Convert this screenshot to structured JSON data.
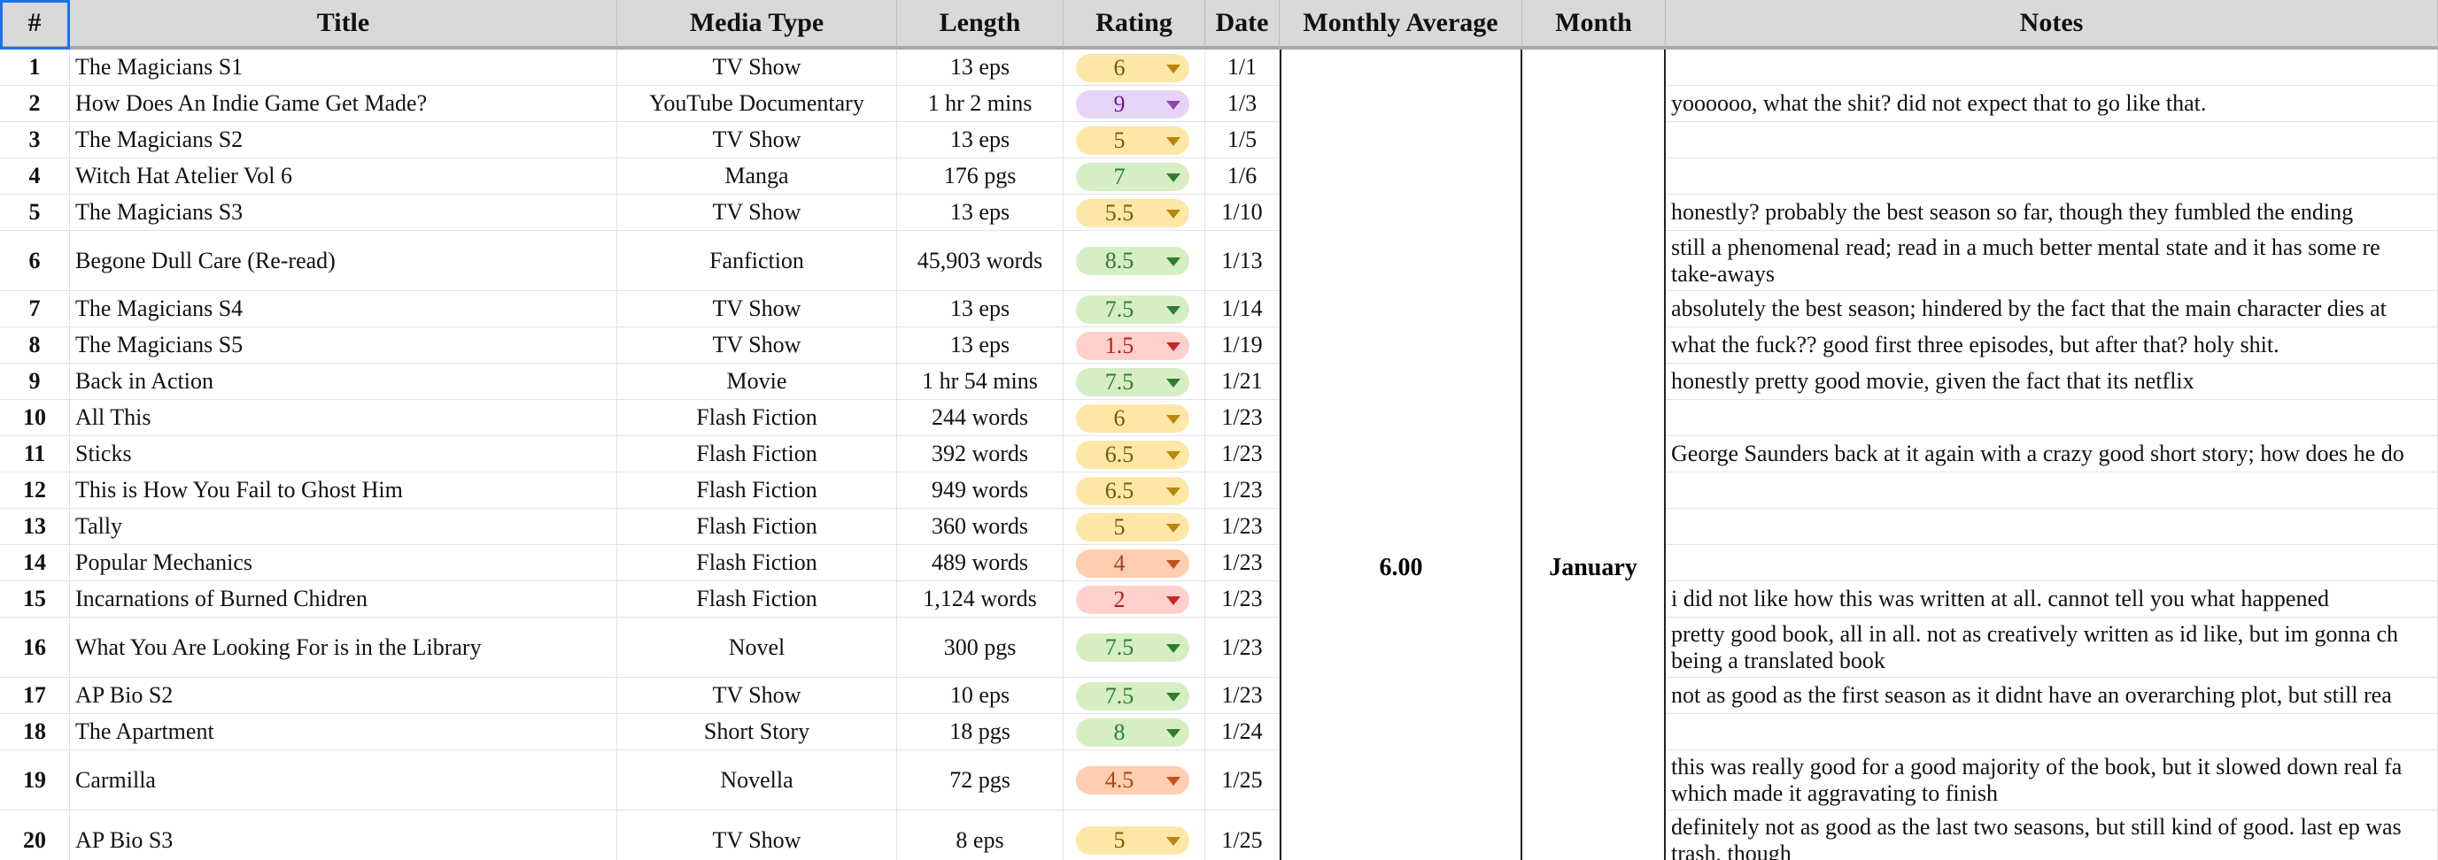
{
  "header": [
    "#",
    "Title",
    "Media Type",
    "Length",
    "Rating",
    "Date",
    "Monthly Average",
    "Month",
    "Notes"
  ],
  "monthly_average": "6.00",
  "month": "January",
  "rows": [
    {
      "num": 1,
      "title": "The Magicians S1",
      "media": "TV Show",
      "length": "13 eps",
      "rating": 6,
      "rating_color": "yellow",
      "date": "1/1",
      "notes": ""
    },
    {
      "num": 2,
      "title": "How Does An Indie Game Get Made?",
      "media": "YouTube Documentary",
      "length": "1 hr 2 mins",
      "rating": 9,
      "rating_color": "purple",
      "date": "1/3",
      "notes": "yoooooo, what the shit? did not expect that to go like that."
    },
    {
      "num": 3,
      "title": "The Magicians S2",
      "media": "TV Show",
      "length": "13 eps",
      "rating": 5,
      "rating_color": "yellow",
      "date": "1/5",
      "notes": ""
    },
    {
      "num": 4,
      "title": "Witch Hat Atelier Vol 6",
      "media": "Manga",
      "length": "176 pgs",
      "rating": 7,
      "rating_color": "green",
      "date": "1/6",
      "notes": ""
    },
    {
      "num": 5,
      "title": "The Magicians S3",
      "media": "TV Show",
      "length": "13 eps",
      "rating": 5.5,
      "rating_color": "yellow",
      "date": "1/10",
      "notes": "honestly? probably the best season so far, though they fumbled the ending"
    },
    {
      "num": 6,
      "title": "Begone Dull Care (Re-read)",
      "media": "Fanfiction",
      "length": "45,903 words",
      "rating": 8.5,
      "rating_color": "green",
      "date": "1/13",
      "notes": [
        "still a phenomenal read; read in a much better mental state and it has some re",
        "take-aways"
      ]
    },
    {
      "num": 7,
      "title": "The Magicians S4",
      "media": "TV Show",
      "length": "13 eps",
      "rating": 7.5,
      "rating_color": "green",
      "date": "1/14",
      "notes": "absolutely the best season; hindered by the fact that the main character dies at"
    },
    {
      "num": 8,
      "title": "The Magicians S5",
      "media": "TV Show",
      "length": "13 eps",
      "rating": 1.5,
      "rating_color": "red",
      "date": "1/19",
      "notes": "what the fuck?? good first three episodes, but after that? holy shit."
    },
    {
      "num": 9,
      "title": "Back in Action",
      "media": "Movie",
      "length": "1 hr 54 mins",
      "rating": 7.5,
      "rating_color": "green",
      "date": "1/21",
      "notes": "honestly pretty good movie, given the fact that its netflix"
    },
    {
      "num": 10,
      "title": "All This",
      "media": "Flash Fiction",
      "length": "244 words",
      "rating": 6,
      "rating_color": "yellow",
      "date": "1/23",
      "notes": ""
    },
    {
      "num": 11,
      "title": "Sticks",
      "media": "Flash Fiction",
      "length": "392 words",
      "rating": 6.5,
      "rating_color": "yellow",
      "date": "1/23",
      "notes": "George Saunders back at it again with a crazy good short story; how does he do"
    },
    {
      "num": 12,
      "title": "This is How You Fail to Ghost Him",
      "media": "Flash Fiction",
      "length": "949 words",
      "rating": 6.5,
      "rating_color": "yellow",
      "date": "1/23",
      "notes": ""
    },
    {
      "num": 13,
      "title": "Tally",
      "media": "Flash Fiction",
      "length": "360 words",
      "rating": 5,
      "rating_color": "yellow",
      "date": "1/23",
      "notes": ""
    },
    {
      "num": 14,
      "title": "Popular Mechanics",
      "media": "Flash Fiction",
      "length": "489 words",
      "rating": 4,
      "rating_color": "orange",
      "date": "1/23",
      "notes": ""
    },
    {
      "num": 15,
      "title": "Incarnations of Burned Chidren",
      "media": "Flash Fiction",
      "length": "1,124 words",
      "rating": 2,
      "rating_color": "red",
      "date": "1/23",
      "notes": "i did not like how this was written at all. cannot tell you what happened"
    },
    {
      "num": 16,
      "title": "What You Are Looking For is in the Library",
      "media": "Novel",
      "length": "300 pgs",
      "rating": 7.5,
      "rating_color": "green",
      "date": "1/23",
      "notes": [
        "pretty good book, all in all. not as creatively written as id like, but im gonna ch",
        "being a translated book"
      ]
    },
    {
      "num": 17,
      "title": "AP Bio S2",
      "media": "TV Show",
      "length": "10 eps",
      "rating": 7.5,
      "rating_color": "green",
      "date": "1/23",
      "notes": "not as good as the first season as it didnt have an overarching plot, but still rea"
    },
    {
      "num": 18,
      "title": "The Apartment",
      "media": "Short Story",
      "length": "18 pgs",
      "rating": 8,
      "rating_color": "green",
      "date": "1/24",
      "notes": ""
    },
    {
      "num": 19,
      "title": "Carmilla",
      "media": "Novella",
      "length": "72 pgs",
      "rating": 4.5,
      "rating_color": "orange",
      "date": "1/25",
      "notes": [
        "this was really good for a good majority of the book, but it slowed down real fa",
        "which made it aggravating to finish"
      ]
    },
    {
      "num": 20,
      "title": "AP Bio S3",
      "media": "TV Show",
      "length": "8 eps",
      "rating": 5,
      "rating_color": "yellow",
      "date": "1/25",
      "notes": [
        "definitely not as good as the last two seasons, but still kind of good. last ep was",
        "trash, though"
      ]
    }
  ]
}
